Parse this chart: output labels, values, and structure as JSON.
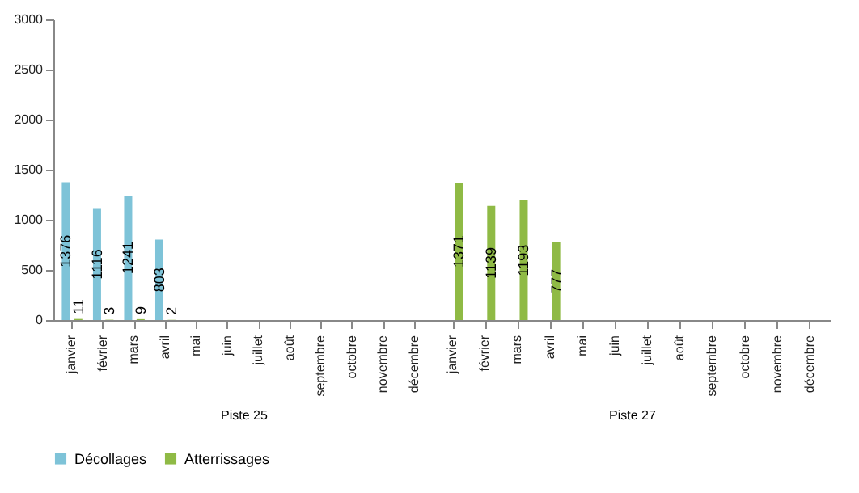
{
  "chart_data": [
    {
      "type": "bar",
      "xlabel": "Piste 25",
      "categories": [
        "janvier",
        "février",
        "mars",
        "avril",
        "mai",
        "juin",
        "juillet",
        "août",
        "septembre",
        "octobre",
        "novembre",
        "décembre"
      ],
      "series": [
        {
          "name": "Décollages",
          "color": "#7ec3d8",
          "values": [
            1376,
            1116,
            1241,
            803,
            null,
            null,
            null,
            null,
            null,
            null,
            null,
            null
          ]
        },
        {
          "name": "Atterrissages",
          "color": "#8fba45",
          "values": [
            11,
            3,
            9,
            2,
            null,
            null,
            null,
            null,
            null,
            null,
            null,
            null
          ]
        }
      ],
      "ylim": [
        0,
        3000
      ],
      "yticks": [
        0,
        500,
        1000,
        1500,
        2000,
        2500,
        3000
      ],
      "data_labels": true,
      "legend": "bottom"
    },
    {
      "type": "bar",
      "xlabel": "Piste 27",
      "categories": [
        "janvier",
        "février",
        "mars",
        "avril",
        "mai",
        "juin",
        "juillet",
        "août",
        "septembre",
        "octobre",
        "novembre",
        "décembre"
      ],
      "series": [
        {
          "name": "Décollages",
          "color": "#7ec3d8",
          "values": [
            null,
            null,
            null,
            null,
            null,
            null,
            null,
            null,
            null,
            null,
            null,
            null
          ]
        },
        {
          "name": "Atterrissages",
          "color": "#8fba45",
          "values": [
            1371,
            1139,
            1193,
            777,
            null,
            null,
            null,
            null,
            null,
            null,
            null,
            null
          ]
        }
      ],
      "ylim": [
        0,
        3000
      ],
      "data_labels": true,
      "legend": "bottom",
      "tick_labels": "x"
    }
  ]
}
